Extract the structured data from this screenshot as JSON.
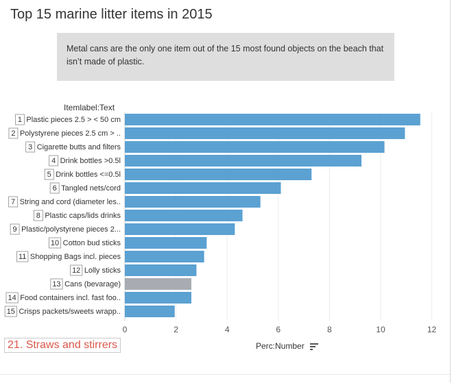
{
  "title": "Top 15 marine litter items in 2015",
  "note": "Metal cans are the only one item out of the 15 most found objects  on the beach that isn’t made of plastic.",
  "callout": "21. Straws and stirrers",
  "colors": {
    "bar": "#5ba1d2",
    "highlight": "#a8acb2",
    "callout": "#d9574a"
  },
  "sort_icon": "sort-descending-icon",
  "chart_data": {
    "type": "bar",
    "orientation": "horizontal",
    "row_header": "Itemlabel:Text",
    "xlabel": "Perc:Number",
    "xlim": [
      0,
      12.2
    ],
    "xticks": [
      0,
      2,
      4,
      6,
      8,
      10,
      12
    ],
    "grid": true,
    "rows": [
      {
        "rank": "1",
        "label": "Plastic pieces 2.5 > < 50 cm",
        "value": 11.55,
        "highlight": false
      },
      {
        "rank": "2",
        "label": "Polystyrene pieces 2.5 cm > ..",
        "value": 10.95,
        "highlight": false
      },
      {
        "rank": "3",
        "label": "Cigarette butts and filters",
        "value": 10.15,
        "highlight": false
      },
      {
        "rank": "4",
        "label": "Drink bottles  >0.5l",
        "value": 9.25,
        "highlight": false
      },
      {
        "rank": "5",
        "label": "Drink bottles  <=0.5l",
        "value": 7.3,
        "highlight": false
      },
      {
        "rank": "6",
        "label": "Tangled nets/cord",
        "value": 6.1,
        "highlight": false
      },
      {
        "rank": "7",
        "label": "String and cord (diameter les..",
        "value": 5.3,
        "highlight": false
      },
      {
        "rank": "8",
        "label": "Plastic caps/lids drinks",
        "value": 4.6,
        "highlight": false
      },
      {
        "rank": "9",
        "label": "Plastic/polystyrene pieces 2...",
        "value": 4.3,
        "highlight": false
      },
      {
        "rank": "10",
        "label": "Cotton bud sticks",
        "value": 3.2,
        "highlight": false
      },
      {
        "rank": "11",
        "label": "Shopping Bags  incl. pieces",
        "value": 3.1,
        "highlight": false
      },
      {
        "rank": "12",
        "label": "Lolly sticks",
        "value": 2.8,
        "highlight": false
      },
      {
        "rank": "13",
        "label": "Cans (bevarage)",
        "value": 2.6,
        "highlight": true
      },
      {
        "rank": "14",
        "label": "Food containers incl. fast foo..",
        "value": 2.6,
        "highlight": false
      },
      {
        "rank": "15",
        "label": "Crisps packets/sweets wrapp..",
        "value": 1.95,
        "highlight": false
      }
    ]
  }
}
